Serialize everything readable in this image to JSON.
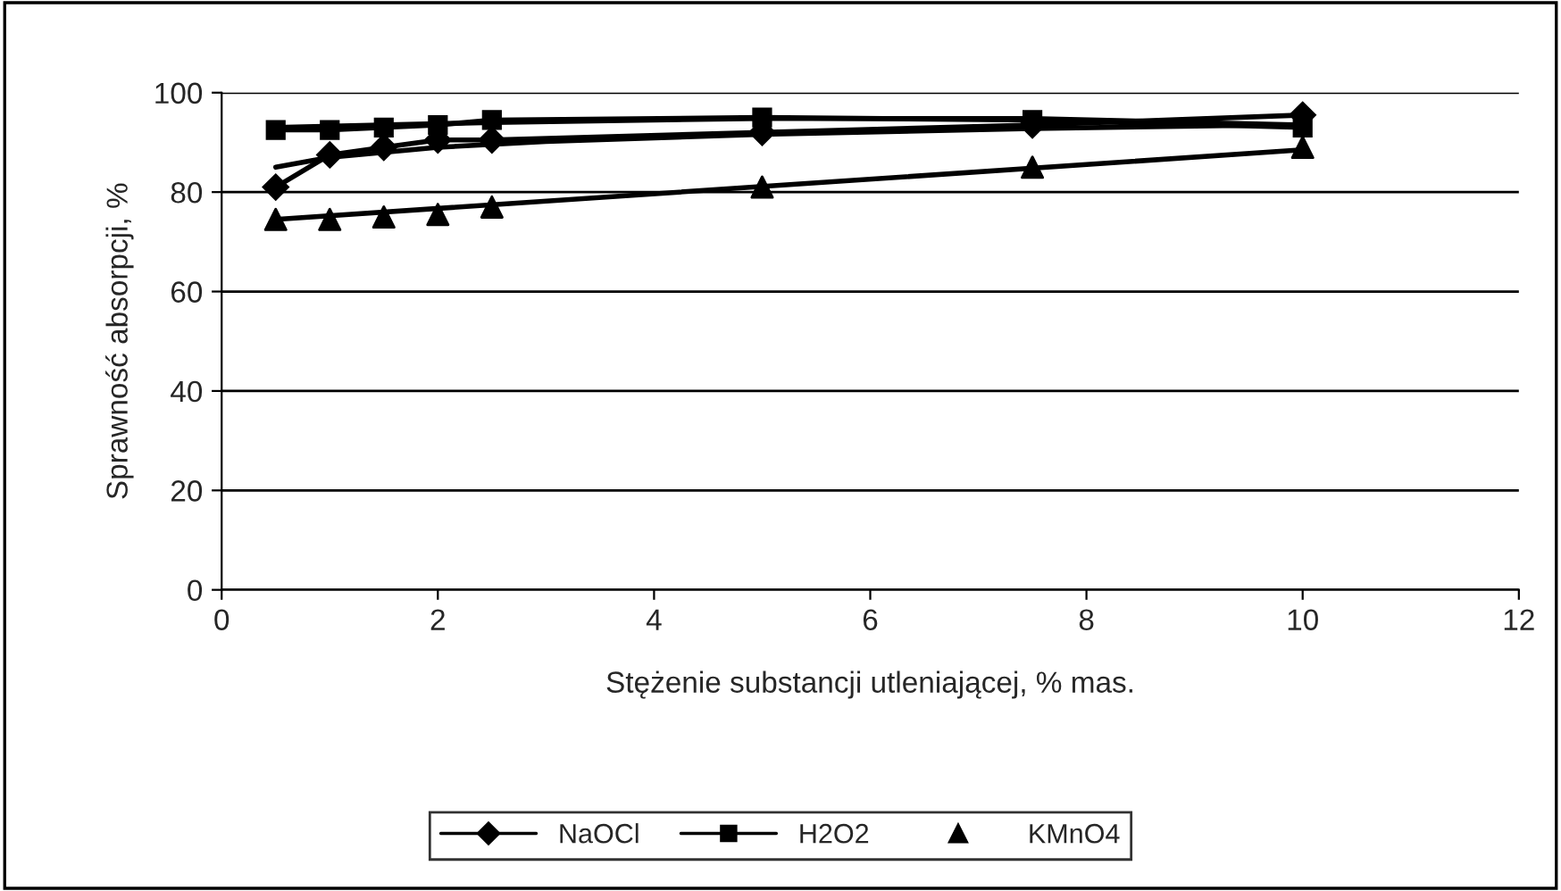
{
  "chart_data": {
    "type": "line",
    "xlabel": "Stężenie substancji utleniającej, % mas.",
    "ylabel": "Sprawność absorpcji, %",
    "x": [
      0.5,
      1,
      1.5,
      2,
      2.5,
      5,
      7.5,
      10
    ],
    "series": [
      {
        "name": "NaOCl",
        "color": "#000000",
        "marker": "diamond",
        "values": [
          81,
          87.5,
          89,
          90.5,
          90.5,
          92,
          93.5,
          95.5
        ]
      },
      {
        "name": "H2O2",
        "color": "#000000",
        "marker": "square",
        "values": [
          92.5,
          92.5,
          93,
          93.5,
          94.5,
          95,
          94.5,
          93
        ]
      },
      {
        "name": "KMnO4",
        "color": "#000000",
        "type": "scatter",
        "marker": "triangle",
        "values": [
          74.5,
          74.5,
          75,
          75.5,
          77,
          81,
          85,
          89
        ]
      },
      {
        "color": "#000000",
        "marker": "none",
        "x": [
          0.5,
          1,
          2,
          3,
          5,
          7.5,
          10
        ],
        "values": [
          85,
          87,
          89,
          90.2,
          91.6,
          92.8,
          93.6
        ]
      },
      {
        "color": "#000000",
        "marker": "none",
        "x": [
          0.5,
          2.5,
          5,
          7.5,
          10
        ],
        "values": [
          93,
          94,
          94.8,
          94.8,
          93.5
        ]
      },
      {
        "color": "#000000",
        "marker": "none",
        "x": [
          0.5,
          10
        ],
        "values": [
          74.5,
          88.5
        ]
      }
    ],
    "xlim": [
      0,
      12
    ],
    "xticks": [
      0,
      2,
      4,
      6,
      8,
      10,
      12
    ],
    "ylim": [
      0,
      100
    ],
    "yticks": [
      0,
      20,
      40,
      60,
      80,
      100
    ],
    "grid": "y",
    "legend": "bottom",
    "line_style": "solid"
  }
}
